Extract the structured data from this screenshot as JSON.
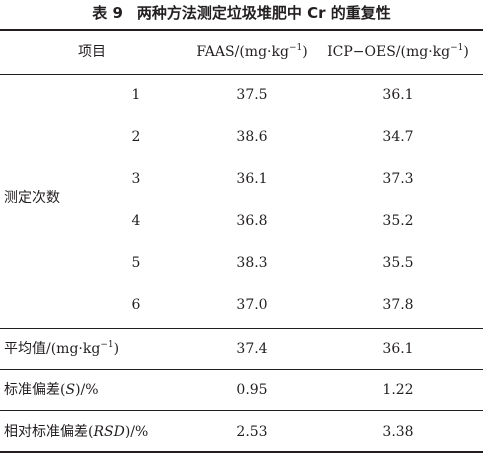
{
  "table": {
    "caption_label": "表 9",
    "caption_text": "两种方法测定垃圾堆肥中 Cr 的重复性",
    "headers": {
      "item": "项目",
      "faas_prefix": "FAAS/(mg·kg",
      "faas_sup": "−1",
      "faas_suffix": ")",
      "icp_prefix": "ICP−OES/(mg·kg",
      "icp_sup": "−1",
      "icp_suffix": ")"
    },
    "group_label": "测定次数",
    "rows": [
      {
        "n": "1",
        "faas": "37.5",
        "icp": "36.1"
      },
      {
        "n": "2",
        "faas": "38.6",
        "icp": "34.7"
      },
      {
        "n": "3",
        "faas": "36.1",
        "icp": "37.3"
      },
      {
        "n": "4",
        "faas": "36.8",
        "icp": "35.2"
      },
      {
        "n": "5",
        "faas": "38.3",
        "icp": "35.5"
      },
      {
        "n": "6",
        "faas": "37.0",
        "icp": "37.8"
      }
    ],
    "summary": {
      "mean_prefix": "平均值/(mg·kg",
      "mean_sup": "−1",
      "mean_suffix": ")",
      "mean_faas": "37.4",
      "mean_icp": "36.1",
      "sd_prefix": "标准偏差(",
      "sd_sym": "S",
      "sd_suffix": ")/%",
      "sd_faas": "0.95",
      "sd_icp": "1.22",
      "rsd_prefix": "相对标准偏差(",
      "rsd_sym": "RSD",
      "rsd_suffix": ")/%",
      "rsd_faas": "2.53",
      "rsd_icp": "3.38"
    }
  }
}
